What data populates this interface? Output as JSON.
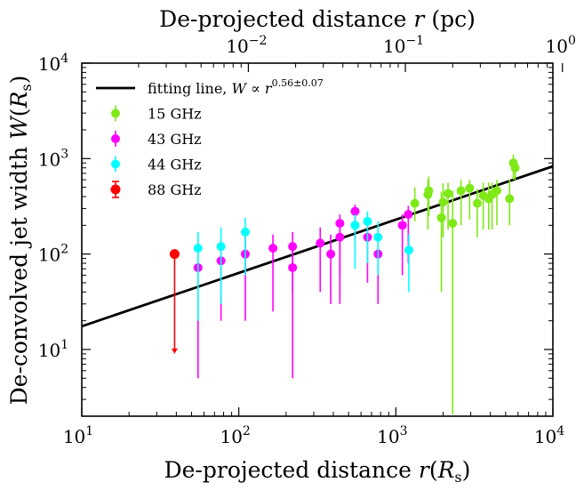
{
  "chart_data": {
    "type": "scatter",
    "title_top_axis": "De-projected distance r (pc)",
    "xlabel": "De-projected distance r(R_s)",
    "ylabel": "De-convolved jet width W(R_s)",
    "xscale": "log",
    "yscale": "log",
    "xlim": [
      10,
      10000
    ],
    "ylim": [
      2,
      10000
    ],
    "x_ticks": [
      10,
      100,
      1000,
      10000
    ],
    "x_tick_labels": [
      {
        "base": "10",
        "exp": "1"
      },
      {
        "base": "10",
        "exp": "2"
      },
      {
        "base": "10",
        "exp": "3"
      },
      {
        "base": "10",
        "exp": "4"
      }
    ],
    "y_ticks": [
      10,
      100,
      1000,
      10000
    ],
    "y_tick_labels": [
      {
        "base": "10",
        "exp": "1"
      },
      {
        "base": "10",
        "exp": "2"
      },
      {
        "base": "10",
        "exp": "3"
      },
      {
        "base": "10",
        "exp": "4"
      }
    ],
    "top_ticks_pc": [
      0.01,
      0.1,
      1
    ],
    "top_tick_labels": [
      {
        "base": "10",
        "exp": "−2"
      },
      {
        "base": "10",
        "exp": "−1"
      },
      {
        "base": "10",
        "exp": "0"
      }
    ],
    "top_axis_rs_per_pc": 5.0,
    "fit": {
      "label": "fitting line, W ∝ r^0.56±0.07",
      "label_text": "fitting line, ",
      "label_eq": "W ∝ r",
      "label_exp": "0.56±0.07",
      "x": [
        10,
        10000
      ],
      "y": [
        17.5,
        830
      ],
      "color": "#000000"
    },
    "series": [
      {
        "name": "15 GHz",
        "color": "#7FE817",
        "points": [
          [
            1320,
            340,
            220,
            500
          ],
          [
            1600,
            420,
            180,
            600
          ],
          [
            1620,
            460,
            250,
            650
          ],
          [
            1950,
            240,
            40,
            450
          ],
          [
            2000,
            350,
            150,
            550
          ],
          [
            2150,
            430,
            180,
            560
          ],
          [
            2300,
            210,
            2.1,
            460
          ],
          [
            2600,
            460,
            200,
            600
          ],
          [
            2950,
            490,
            230,
            600
          ],
          [
            3300,
            340,
            150,
            480
          ],
          [
            3600,
            410,
            180,
            560
          ],
          [
            3900,
            380,
            180,
            560
          ],
          [
            4100,
            420,
            180,
            560
          ],
          [
            4400,
            460,
            200,
            600
          ],
          [
            5300,
            380,
            200,
            600
          ],
          [
            5600,
            900,
            600,
            1100
          ],
          [
            5750,
            800,
            600,
            1000
          ]
        ]
      },
      {
        "name": "43 GHz",
        "color": "#FF00FF",
        "points": [
          [
            55,
            72,
            5,
            120
          ],
          [
            77,
            85,
            20,
            140
          ],
          [
            110,
            100,
            20,
            150
          ],
          [
            165,
            115,
            25,
            160
          ],
          [
            220,
            72,
            5,
            110
          ],
          [
            220,
            120,
            40,
            170
          ],
          [
            330,
            130,
            40,
            190
          ],
          [
            385,
            100,
            30,
            160
          ],
          [
            440,
            150,
            30,
            210
          ],
          [
            440,
            210,
            60,
            260
          ],
          [
            550,
            280,
            140,
            330
          ],
          [
            660,
            150,
            50,
            220
          ],
          [
            770,
            100,
            30,
            160
          ],
          [
            1100,
            200,
            60,
            260
          ],
          [
            1200,
            260,
            80,
            320
          ]
        ]
      },
      {
        "name": "44 GHz",
        "color": "#00FFFF",
        "points": [
          [
            55,
            115,
            20,
            170
          ],
          [
            77,
            120,
            30,
            190
          ],
          [
            110,
            170,
            60,
            240
          ],
          [
            550,
            200,
            70,
            260
          ],
          [
            660,
            220,
            80,
            280
          ],
          [
            770,
            150,
            60,
            220
          ],
          [
            1210,
            110,
            40,
            160
          ]
        ]
      },
      {
        "name": "88 GHz",
        "color": "#FF0000",
        "points": [
          [
            39,
            100,
            9,
            100
          ]
        ],
        "upper_limit": true
      }
    ],
    "legend": {
      "position": "top-left",
      "entries": [
        "fitting line, W ∝ r^0.56±0.07",
        "15 GHz",
        "43 GHz",
        "44 GHz",
        "88 GHz"
      ]
    }
  }
}
